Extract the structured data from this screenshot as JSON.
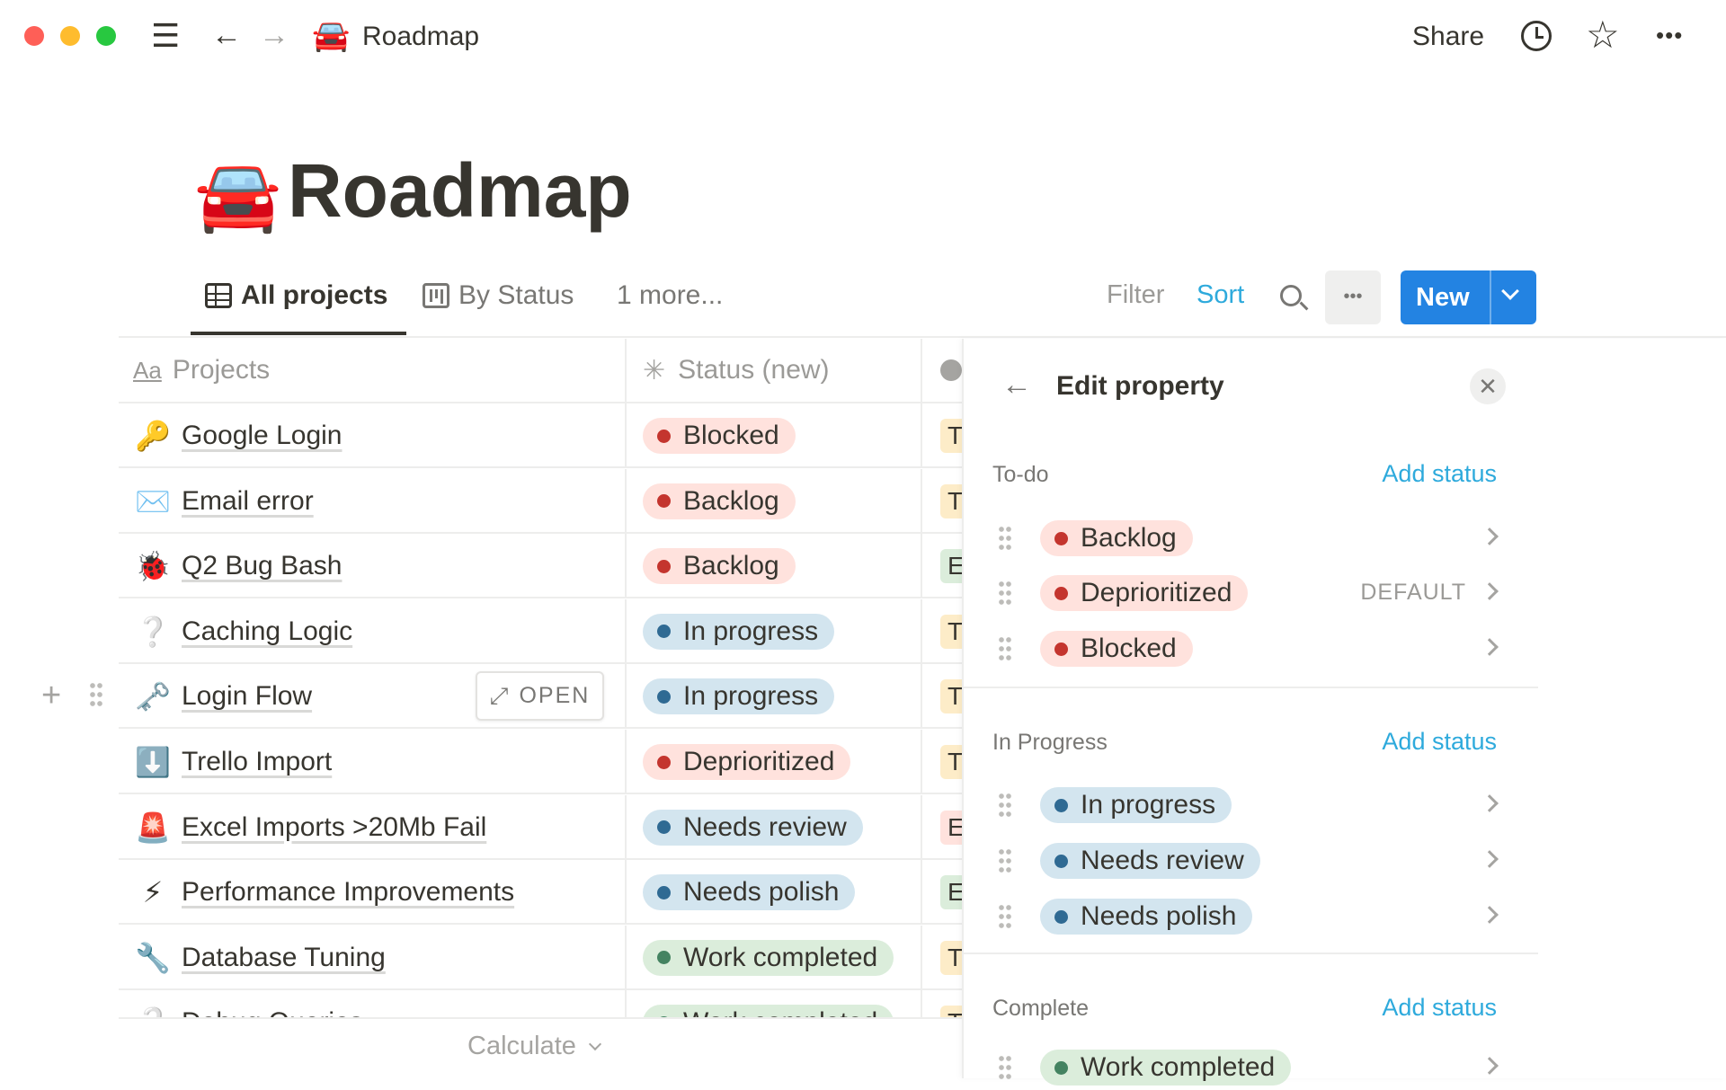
{
  "titlebar": {
    "icons": [
      "menu-icon",
      "back-icon",
      "forward-icon"
    ],
    "page_emoji": "🚘",
    "page_title": "Roadmap",
    "share": "Share",
    "more": "•••"
  },
  "page": {
    "emoji": "🚘",
    "title": "Roadmap"
  },
  "views": {
    "tabs": [
      {
        "label": "All projects",
        "icon": "table-icon",
        "active": true
      },
      {
        "label": "By Status",
        "icon": "board-icon",
        "active": false
      }
    ],
    "more": "1 more...",
    "filter": "Filter",
    "sort": "Sort",
    "new": "New",
    "more_btn": "•••"
  },
  "table": {
    "headers": {
      "projects": "Projects",
      "projects_icon": "Aa",
      "status": "Status (new)"
    },
    "rows": [
      {
        "emoji": "🔑",
        "name": "Google Login",
        "status": "Blocked",
        "color": "red",
        "pri": "T",
        "pcolor": "yellow"
      },
      {
        "emoji": "✉️",
        "name": "Email error",
        "status": "Backlog",
        "color": "red",
        "pri": "T",
        "pcolor": "yellow"
      },
      {
        "emoji": "🐞",
        "name": "Q2 Bug Bash",
        "status": "Backlog",
        "color": "red",
        "pri": "E",
        "pcolor": "green"
      },
      {
        "emoji": "❔",
        "name": "Caching Logic",
        "status": "In progress",
        "color": "blue",
        "pri": "T",
        "pcolor": "yellow"
      },
      {
        "emoji": "🗝️",
        "name": "Login Flow",
        "status": "In progress",
        "color": "blue",
        "pri": "T",
        "pcolor": "yellow"
      },
      {
        "emoji": "⬇️",
        "name": "Trello Import",
        "status": "Deprioritized",
        "color": "red",
        "pri": "T",
        "pcolor": "yellow"
      },
      {
        "emoji": "🚨",
        "name": "Excel Imports >20Mb Fail",
        "status": "Needs review",
        "color": "blue",
        "pri": "E",
        "pcolor": "red"
      },
      {
        "emoji": "⚡",
        "name": "Performance Improvements",
        "status": "Needs polish",
        "color": "blue",
        "pri": "E",
        "pcolor": "green"
      },
      {
        "emoji": "🔧",
        "name": "Database Tuning",
        "status": "Work completed",
        "color": "green",
        "pri": "T",
        "pcolor": "yellow"
      },
      {
        "emoji": "❔",
        "name": "Debug Queries",
        "status": "Work completed",
        "color": "green",
        "pri": "T",
        "pcolor": "yellow"
      }
    ],
    "open_button": "OPEN",
    "calculate": "Calculate"
  },
  "panel": {
    "title": "Edit property",
    "add_status": "Add status",
    "default_label": "DEFAULT",
    "groups": [
      {
        "label": "To-do",
        "items": [
          {
            "name": "Backlog",
            "color": "red"
          },
          {
            "name": "Deprioritized",
            "color": "red",
            "default": true
          },
          {
            "name": "Blocked",
            "color": "red"
          }
        ]
      },
      {
        "label": "In Progress",
        "items": [
          {
            "name": "In progress",
            "color": "blue"
          },
          {
            "name": "Needs review",
            "color": "blue"
          },
          {
            "name": "Needs polish",
            "color": "blue"
          }
        ]
      },
      {
        "label": "Complete",
        "items": [
          {
            "name": "Work completed",
            "color": "green"
          }
        ]
      }
    ]
  },
  "colors": {
    "red": {
      "bg": "#ffe2dd",
      "dot": "#c4352e"
    },
    "blue": {
      "bg": "#d3e5ef",
      "dot": "#2f6a93"
    },
    "green": {
      "bg": "#dbeddb",
      "dot": "#448361"
    },
    "yellow": {
      "bg": "#fdecc8",
      "dot": "#cb912f"
    },
    "accent": "#2eaadc",
    "new_button": "#2383e2"
  }
}
